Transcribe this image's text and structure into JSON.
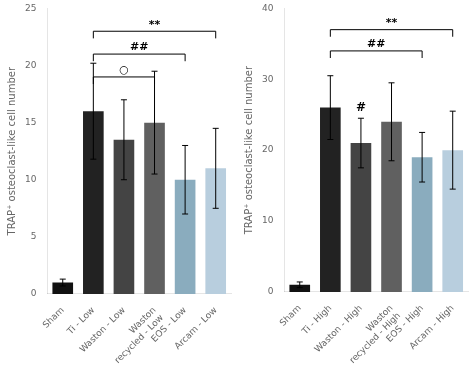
{
  "chart_data": [
    {
      "type": "bar",
      "categories": [
        "Sham",
        "Ti - Low",
        "Waston - Low",
        "Waston\nrecycled - Low",
        "EOS - Low",
        "Arcam - Low"
      ],
      "values": [
        1.0,
        16.0,
        13.5,
        15.0,
        10.0,
        11.0
      ],
      "errors": [
        0.3,
        4.2,
        3.5,
        4.5,
        3.0,
        3.5
      ],
      "colors": [
        "#111111",
        "#222222",
        "#444444",
        "#606060",
        "#8aacbe",
        "#b8cede"
      ],
      "ylabel": "TRAP⁺ osteoclast-like cell number",
      "ylim": [
        0,
        25
      ],
      "yticks": [
        0,
        5,
        10,
        15,
        20,
        25
      ],
      "grid": false,
      "annotations": [
        {
          "label": "**",
          "from": "Ti - Low",
          "to": "Arcam - Low",
          "y": 23.0
        },
        {
          "label": "##",
          "from": "Ti - Low",
          "to": "EOS - Low",
          "y": 21.0
        },
        {
          "label": "○",
          "from": "Ti - Low",
          "to": "Waston\nrecycled - Low",
          "y": 19.0
        }
      ]
    },
    {
      "type": "bar",
      "categories": [
        "Sham",
        "Ti - High",
        "Waston - High",
        "Waston\nrecycled - High",
        "EOS - High",
        "Arcam - High"
      ],
      "values": [
        1.0,
        26.0,
        21.0,
        24.0,
        19.0,
        20.0
      ],
      "errors": [
        0.4,
        4.5,
        3.5,
        5.5,
        3.5,
        5.5
      ],
      "colors": [
        "#111111",
        "#222222",
        "#444444",
        "#606060",
        "#8aacbe",
        "#b8cede"
      ],
      "ylabel": "TRAP⁺ osteoclast-like cell number",
      "ylim": [
        0,
        40
      ],
      "yticks": [
        0,
        10,
        20,
        30,
        40
      ],
      "grid": false,
      "annotations": [
        {
          "label": "**",
          "from": "Ti - High",
          "to": "Arcam - High",
          "y": 37.0
        },
        {
          "label": "##",
          "from": "Ti - High",
          "to": "EOS - High",
          "y": 34.0
        },
        {
          "label": "#",
          "category": "Waston - High"
        }
      ]
    }
  ]
}
